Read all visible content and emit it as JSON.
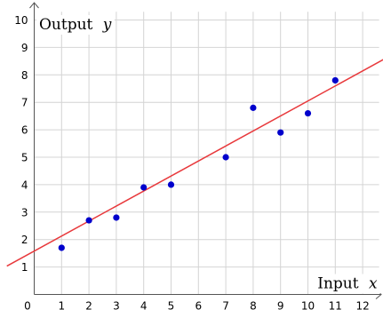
{
  "chart_data": {
    "type": "scatter",
    "xlabel": "Input",
    "xlabel_var": "x",
    "ylabel": "Output",
    "ylabel_var": "y",
    "xlim": [
      0,
      12.6
    ],
    "ylim": [
      0,
      10.3
    ],
    "x_ticks": [
      0,
      1,
      2,
      3,
      4,
      5,
      6,
      7,
      8,
      9,
      10,
      11,
      12
    ],
    "y_ticks": [
      1,
      2,
      3,
      4,
      5,
      6,
      7,
      8,
      9,
      10
    ],
    "grid": true,
    "points": [
      {
        "x": 1,
        "y": 1.7
      },
      {
        "x": 2,
        "y": 2.7
      },
      {
        "x": 3,
        "y": 2.8
      },
      {
        "x": 4,
        "y": 3.9
      },
      {
        "x": 5,
        "y": 4.0
      },
      {
        "x": 7,
        "y": 5.0
      },
      {
        "x": 8,
        "y": 6.8
      },
      {
        "x": 9,
        "y": 5.9
      },
      {
        "x": 10,
        "y": 6.6
      },
      {
        "x": 11,
        "y": 7.8
      }
    ],
    "trend_line": {
      "slope": 0.547,
      "intercept": 1.58
    },
    "colors": {
      "points": "#0000cc",
      "trend_line": "#e8393c",
      "grid": "#d4d4d4",
      "axes": "#555555"
    }
  }
}
